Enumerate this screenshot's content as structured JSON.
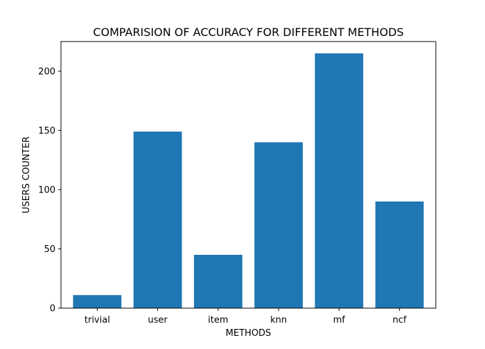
{
  "chart_data": {
    "type": "bar",
    "title": "COMPARISION OF ACCURACY FOR DIFFERENT METHODS",
    "xlabel": "METHODS",
    "ylabel": "USERS COUNTER",
    "categories": [
      "trivial",
      "user",
      "item",
      "knn",
      "mf",
      "ncf"
    ],
    "values": [
      11,
      149,
      45,
      140,
      215,
      90
    ],
    "ylim": [
      0,
      225
    ],
    "yticks": [
      0,
      50,
      100,
      150,
      200
    ],
    "grid": false,
    "legend": "none",
    "bar_color": "#1f77b4"
  }
}
